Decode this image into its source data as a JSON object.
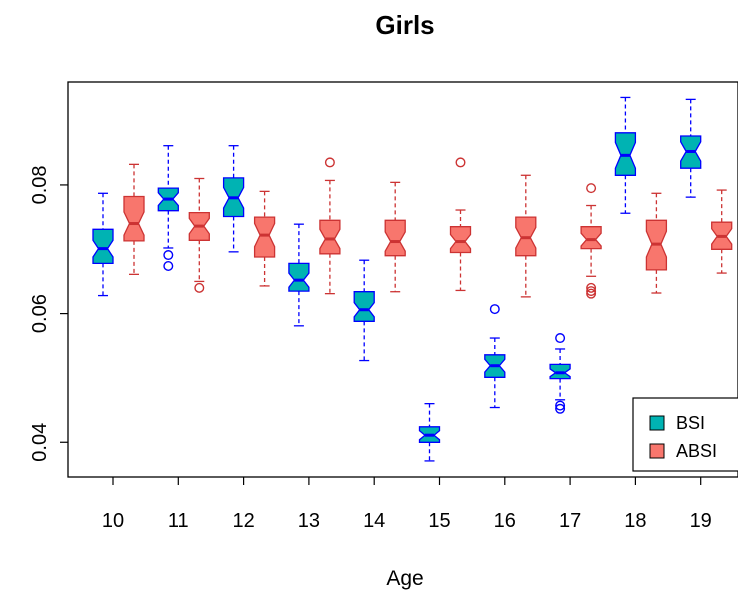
{
  "chart_data": {
    "type": "boxplot",
    "title": "Girls",
    "xlabel": "Age",
    "ylabel": "",
    "categories": [
      "10",
      "11",
      "12",
      "13",
      "14",
      "15",
      "16",
      "17",
      "18",
      "19"
    ],
    "y_ticks": [
      "0.04",
      "0.06",
      "0.08"
    ],
    "ylim": [
      0.0346,
      0.096
    ],
    "notched": true,
    "legend_position": "bottom-right",
    "series": [
      {
        "name": "BSI",
        "fill": "#00b3b3",
        "line": "#0000ff",
        "boxes": [
          {
            "lower_whisker": 0.0628,
            "q1": 0.0678,
            "median": 0.0701,
            "q3": 0.0731,
            "upper_whisker": 0.0787,
            "notch": 0.0013,
            "outliers": []
          },
          {
            "lower_whisker": 0.0702,
            "q1": 0.076,
            "median": 0.0778,
            "q3": 0.0795,
            "upper_whisker": 0.0861,
            "notch": 0.001,
            "outliers": [
              0.0674,
              0.0691
            ]
          },
          {
            "lower_whisker": 0.0696,
            "q1": 0.0751,
            "median": 0.078,
            "q3": 0.0811,
            "upper_whisker": 0.0861,
            "notch": 0.0016,
            "outliers": []
          },
          {
            "lower_whisker": 0.0581,
            "q1": 0.0635,
            "median": 0.0652,
            "q3": 0.0678,
            "upper_whisker": 0.0739,
            "notch": 0.0011,
            "outliers": []
          },
          {
            "lower_whisker": 0.0527,
            "q1": 0.0588,
            "median": 0.0606,
            "q3": 0.0634,
            "upper_whisker": 0.0683,
            "notch": 0.0011,
            "outliers": []
          },
          {
            "lower_whisker": 0.0371,
            "q1": 0.04,
            "median": 0.0411,
            "q3": 0.0424,
            "upper_whisker": 0.046,
            "notch": 0.0007,
            "outliers": []
          },
          {
            "lower_whisker": 0.0454,
            "q1": 0.0501,
            "median": 0.0519,
            "q3": 0.0536,
            "upper_whisker": 0.0562,
            "notch": 0.001,
            "outliers": [
              0.0607
            ]
          },
          {
            "lower_whisker": 0.0466,
            "q1": 0.0499,
            "median": 0.0508,
            "q3": 0.0521,
            "upper_whisker": 0.0545,
            "notch": 0.0006,
            "outliers": [
              0.0562,
              0.0457,
              0.0452
            ]
          },
          {
            "lower_whisker": 0.0756,
            "q1": 0.0815,
            "median": 0.0846,
            "q3": 0.0881,
            "upper_whisker": 0.0936,
            "notch": 0.002,
            "outliers": []
          },
          {
            "lower_whisker": 0.0781,
            "q1": 0.0826,
            "median": 0.0852,
            "q3": 0.0876,
            "upper_whisker": 0.0933,
            "notch": 0.0015,
            "outliers": []
          }
        ]
      },
      {
        "name": "ABSI",
        "fill": "#f8766d",
        "line": "#cc3333",
        "boxes": [
          {
            "lower_whisker": 0.0661,
            "q1": 0.0713,
            "median": 0.074,
            "q3": 0.0782,
            "upper_whisker": 0.0832,
            "notch": 0.0018,
            "outliers": []
          },
          {
            "lower_whisker": 0.065,
            "q1": 0.0714,
            "median": 0.0736,
            "q3": 0.0757,
            "upper_whisker": 0.081,
            "notch": 0.0012,
            "outliers": [
              0.064
            ]
          },
          {
            "lower_whisker": 0.0643,
            "q1": 0.0688,
            "median": 0.0722,
            "q3": 0.075,
            "upper_whisker": 0.079,
            "notch": 0.0018,
            "outliers": []
          },
          {
            "lower_whisker": 0.0631,
            "q1": 0.0693,
            "median": 0.0716,
            "q3": 0.0745,
            "upper_whisker": 0.0807,
            "notch": 0.0015,
            "outliers": [
              0.0835
            ]
          },
          {
            "lower_whisker": 0.0634,
            "q1": 0.069,
            "median": 0.0712,
            "q3": 0.0745,
            "upper_whisker": 0.0804,
            "notch": 0.0015,
            "outliers": []
          },
          {
            "lower_whisker": 0.0636,
            "q1": 0.0695,
            "median": 0.0712,
            "q3": 0.0735,
            "upper_whisker": 0.0761,
            "notch": 0.0011,
            "outliers": [
              0.0835
            ]
          },
          {
            "lower_whisker": 0.0626,
            "q1": 0.069,
            "median": 0.0718,
            "q3": 0.075,
            "upper_whisker": 0.0815,
            "notch": 0.0016,
            "outliers": []
          },
          {
            "lower_whisker": 0.0658,
            "q1": 0.0701,
            "median": 0.0715,
            "q3": 0.0735,
            "upper_whisker": 0.0768,
            "notch": 0.001,
            "outliers": [
              0.0795,
              0.064,
              0.0635,
              0.0631
            ]
          },
          {
            "lower_whisker": 0.0632,
            "q1": 0.0668,
            "median": 0.0708,
            "q3": 0.0745,
            "upper_whisker": 0.0787,
            "notch": 0.002,
            "outliers": []
          },
          {
            "lower_whisker": 0.0663,
            "q1": 0.07,
            "median": 0.072,
            "q3": 0.0742,
            "upper_whisker": 0.0792,
            "notch": 0.0012,
            "outliers": []
          }
        ]
      }
    ]
  }
}
